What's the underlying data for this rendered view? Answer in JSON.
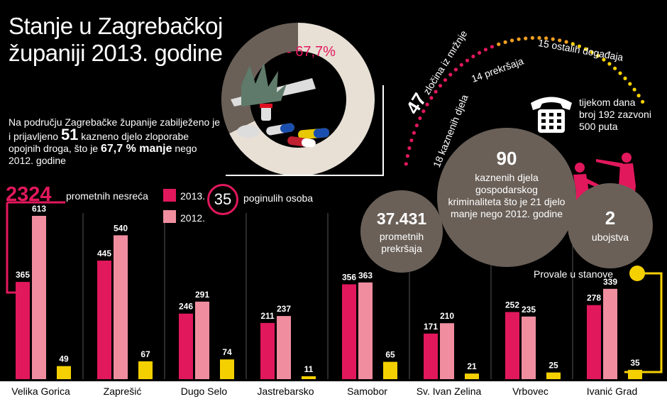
{
  "title": "Stanje u Zagrebačkoj županiji 2013. godine",
  "drugs": {
    "text_pre": "Na području Zagrebačke županije zabilježeno je i prijavljeno ",
    "count": "51",
    "text_mid": " kazneno djelo zloporabe opojnih droga, što je ",
    "percent": "67,7 %",
    "word_less": " manje",
    "text_post": " nego 2012. godine",
    "donut_label": "- 67,7%",
    "donut_fraction": 0.677
  },
  "accidents": {
    "count": "2324",
    "label": "prometnih nesreća",
    "deaths": "35",
    "deaths_label": "poginulih osoba"
  },
  "legend": {
    "y2013": "2013.",
    "y2012": "2012."
  },
  "crimes_arc": {
    "main_number": "47",
    "main_label": "zločina iz mržnje",
    "items": [
      "18 kaznenih djela",
      "14 prekršaja",
      "15 ostalih događaja"
    ]
  },
  "phone": {
    "line1": "tijekom dana",
    "line2": "broj 192 zazvoni",
    "line3": "500 puta"
  },
  "bubbles": {
    "prekrsaji_n": "37.431",
    "prekrsaji_l": "prometnih prekršaja",
    "kd_n": "90",
    "kd_l": "kaznenih djela gospodarskog kriminaliteta što je 21 djelo manje nego 2012. godine",
    "ubojstva_n": "2",
    "ubojstva_l": "ubojstva"
  },
  "provale_label": "Provale u stanove",
  "colors": {
    "y2013": "#e2185c",
    "y2012": "#f08ea0",
    "provale": "#f5d000",
    "bubble": "#6a6058"
  },
  "chart_data": {
    "type": "bar",
    "categories": [
      "Velika Gorica",
      "Zaprešić",
      "Dugo Selo",
      "Jastrebarsko",
      "Samobor",
      "Sv. Ivan Zelina",
      "Vrbovec",
      "Ivanić Grad"
    ],
    "series": [
      {
        "name": "2013.",
        "values": [
          365,
          445,
          246,
          211,
          356,
          171,
          252,
          278
        ]
      },
      {
        "name": "2012.",
        "values": [
          613,
          540,
          291,
          237,
          363,
          210,
          235,
          339
        ]
      },
      {
        "name": "Provale u stanove",
        "values": [
          49,
          67,
          74,
          11,
          65,
          21,
          25,
          35
        ]
      }
    ]
  }
}
